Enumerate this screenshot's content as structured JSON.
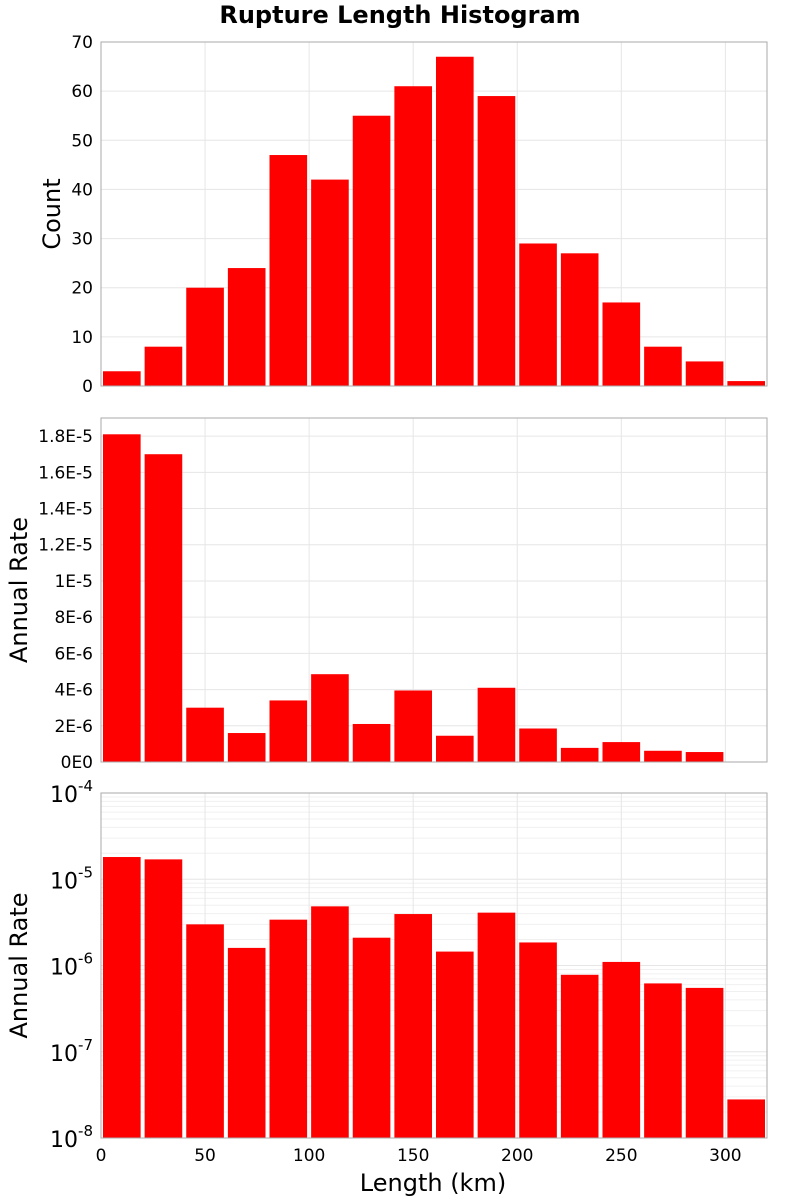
{
  "chart_data": {
    "type": "bar",
    "title": "Rupture Length Histogram",
    "xlabel": "Length (km)",
    "xlim": [
      0,
      320
    ],
    "x_ticks": [
      {
        "value": 0,
        "label": "0"
      },
      {
        "value": 50,
        "label": "50"
      },
      {
        "value": 100,
        "label": "100"
      },
      {
        "value": 150,
        "label": "150"
      },
      {
        "value": 200,
        "label": "200"
      },
      {
        "value": 250,
        "label": "250"
      },
      {
        "value": 300,
        "label": "300"
      }
    ],
    "bar_color": "#ff0000",
    "bin_width": 20,
    "bin_centers": [
      10,
      30,
      50,
      70,
      90,
      110,
      130,
      150,
      170,
      190,
      210,
      230,
      250,
      270,
      290,
      310
    ],
    "panels": [
      {
        "ylabel": "Count",
        "scale": "linear",
        "ylim": [
          0,
          70
        ],
        "y_ticks": [
          {
            "value": 0,
            "label": "0"
          },
          {
            "value": 10,
            "label": "10"
          },
          {
            "value": 20,
            "label": "20"
          },
          {
            "value": 30,
            "label": "30"
          },
          {
            "value": 40,
            "label": "40"
          },
          {
            "value": 50,
            "label": "50"
          },
          {
            "value": 60,
            "label": "60"
          },
          {
            "value": 70,
            "label": "70"
          }
        ],
        "values": [
          3,
          8,
          20,
          24,
          47,
          42,
          55,
          61,
          67,
          59,
          29,
          27,
          17,
          8,
          5,
          1
        ]
      },
      {
        "ylabel": "Annual Rate",
        "scale": "linear",
        "ylim": [
          0,
          1.9e-05
        ],
        "y_ticks": [
          {
            "value": 0,
            "label": "0E0"
          },
          {
            "value": 2e-06,
            "label": "2E-6"
          },
          {
            "value": 4e-06,
            "label": "4E-6"
          },
          {
            "value": 6e-06,
            "label": "6E-6"
          },
          {
            "value": 8e-06,
            "label": "8E-6"
          },
          {
            "value": 1e-05,
            "label": "1E-5"
          },
          {
            "value": 1.2e-05,
            "label": "1.2E-5"
          },
          {
            "value": 1.4e-05,
            "label": "1.4E-5"
          },
          {
            "value": 1.6e-05,
            "label": "1.6E-5"
          },
          {
            "value": 1.8e-05,
            "label": "1.8E-5"
          }
        ],
        "values": [
          1.81e-05,
          1.7e-05,
          3e-06,
          1.6e-06,
          3.4e-06,
          4.85e-06,
          2.1e-06,
          3.95e-06,
          1.45e-06,
          4.1e-06,
          1.85e-06,
          7.8e-07,
          1.1e-06,
          6.2e-07,
          5.5e-07,
          2.8e-08
        ]
      },
      {
        "ylabel": "Annual Rate",
        "scale": "log",
        "ylim": [
          1e-08,
          0.0001
        ],
        "y_ticks": [
          {
            "value": 1e-08,
            "base": "10",
            "exp": "-8"
          },
          {
            "value": 1e-07,
            "base": "10",
            "exp": "-7"
          },
          {
            "value": 1e-06,
            "base": "10",
            "exp": "-6"
          },
          {
            "value": 1e-05,
            "base": "10",
            "exp": "-5"
          },
          {
            "value": 0.0001,
            "base": "10",
            "exp": "-4"
          }
        ],
        "values": [
          1.81e-05,
          1.7e-05,
          3e-06,
          1.6e-06,
          3.4e-06,
          4.85e-06,
          2.1e-06,
          3.95e-06,
          1.45e-06,
          4.1e-06,
          1.85e-06,
          7.8e-07,
          1.1e-06,
          6.2e-07,
          5.5e-07,
          2.8e-08
        ]
      }
    ]
  }
}
